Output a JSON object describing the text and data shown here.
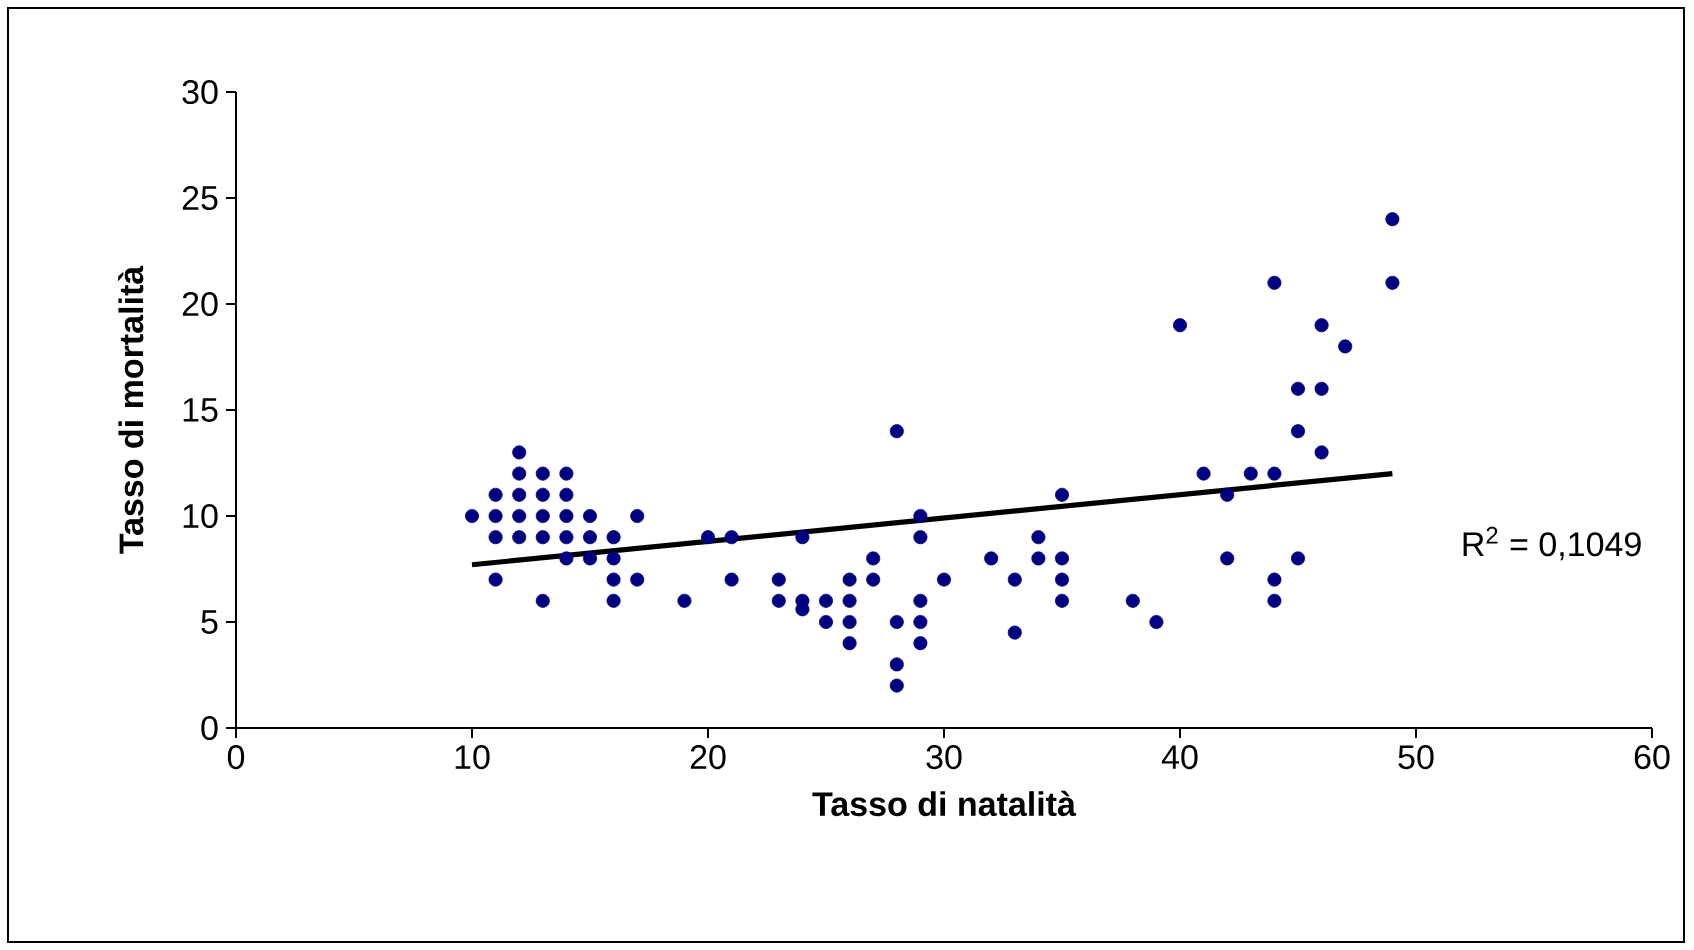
{
  "chart_data": {
    "type": "scatter",
    "xlabel": "Tasso di natalità",
    "ylabel": "Tasso di mortalità",
    "xlim": [
      0,
      60
    ],
    "ylim": [
      0,
      30
    ],
    "xticks": [
      0,
      10,
      20,
      30,
      40,
      50,
      60
    ],
    "yticks": [
      0,
      5,
      10,
      15,
      20,
      25,
      30
    ],
    "annotations": [
      "R$^{2}$ = 0,1049"
    ],
    "series": [
      {
        "color": "#000080",
        "marker": "circle",
        "x": [
          10,
          11,
          11,
          11,
          11,
          12,
          12,
          12,
          12,
          12,
          13,
          13,
          13,
          13,
          13,
          14,
          14,
          14,
          14,
          14,
          15,
          15,
          15,
          16,
          16,
          16,
          16,
          17,
          17,
          19,
          20,
          21,
          21,
          23,
          23,
          24,
          24,
          24,
          25,
          25,
          26,
          26,
          26,
          26,
          27,
          27,
          28,
          28,
          28,
          28,
          29,
          29,
          29,
          29,
          29,
          30,
          32,
          33,
          33,
          34,
          34,
          35,
          35,
          35,
          35,
          38,
          39,
          40,
          41,
          42,
          42,
          43,
          44,
          44,
          44,
          44,
          45,
          45,
          45,
          46,
          46,
          46,
          47,
          49,
          49
        ],
        "values": [
          10,
          11,
          10,
          9,
          7,
          13,
          12,
          11,
          10,
          9,
          12,
          11,
          10,
          9,
          6,
          12,
          11,
          10,
          9,
          8,
          10,
          9,
          8,
          9,
          8,
          7,
          6,
          10,
          7,
          6,
          9,
          9,
          7,
          7,
          6,
          9,
          6,
          5.6,
          6,
          5,
          7,
          6,
          5,
          4,
          8,
          7,
          14,
          5,
          3,
          2,
          10,
          9,
          6,
          5,
          4,
          7,
          8,
          7,
          4.5,
          9,
          8,
          11,
          8,
          7,
          6,
          6,
          5,
          19,
          12,
          11,
          8,
          12,
          21,
          12,
          7,
          6,
          16,
          14,
          8,
          19,
          16,
          13,
          18,
          24,
          21
        ]
      },
      {
        "type": "line",
        "color": "#000000",
        "marker": "none",
        "line_style": "solid",
        "x": [
          10,
          49
        ],
        "values": [
          7.7,
          12.0
        ]
      }
    ]
  }
}
